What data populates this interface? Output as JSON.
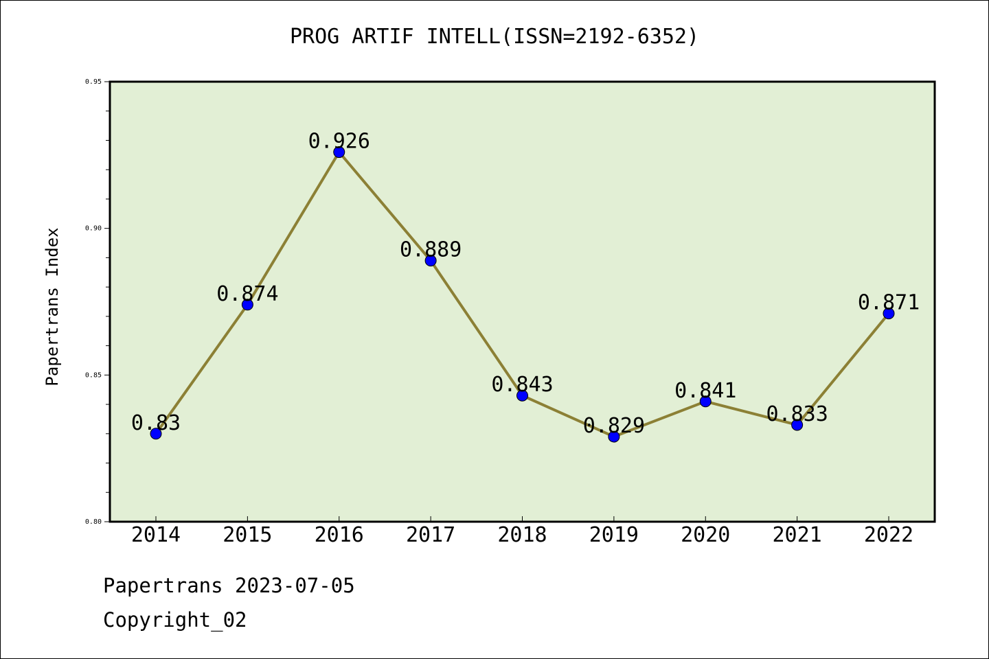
{
  "chart_data": {
    "type": "line",
    "title": "PROG ARTIF INTELL(ISSN=2192-6352)",
    "xlabel": "",
    "ylabel": "Papertrans Index",
    "categories": [
      "2014",
      "2015",
      "2016",
      "2017",
      "2018",
      "2019",
      "2020",
      "2021",
      "2022"
    ],
    "series": [
      {
        "values": [
          0.83,
          0.874,
          0.926,
          0.889,
          0.843,
          0.829,
          0.841,
          0.833,
          0.871
        ]
      }
    ],
    "data_labels": [
      "0.83",
      "0.874",
      "0.926",
      "0.889",
      "0.843",
      "0.829",
      "0.841",
      "0.833",
      "0.871"
    ],
    "ylim": [
      0.8,
      0.95
    ],
    "yticks": [
      "0.80",
      "0.85",
      "0.90",
      "0.95"
    ],
    "grid": false,
    "colors": {
      "plot_background": "#e2efd5",
      "line": "#8c8035",
      "marker": "#0000ff"
    }
  },
  "footer": {
    "line1": "Papertrans 2023-07-05",
    "line2": "Copyright_02"
  }
}
